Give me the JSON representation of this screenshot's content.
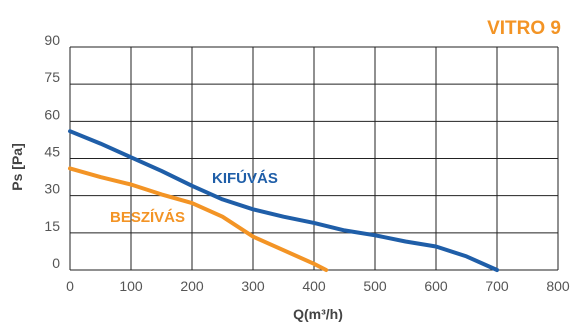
{
  "chart_data": {
    "type": "line",
    "title": "VITRO 9",
    "xlabel": "Q(m³/h)",
    "ylabel": "Ps [Pa]",
    "xlim": [
      0,
      800
    ],
    "ylim": [
      0,
      90
    ],
    "x_ticks": [
      "0",
      "100",
      "200",
      "300",
      "400",
      "500",
      "600",
      "700",
      "800"
    ],
    "y_ticks": [
      "90",
      "75",
      "60",
      "45",
      "30",
      "15",
      "0"
    ],
    "grid": true,
    "series": [
      {
        "name": "KIFÚVÁS",
        "color": "#1f5ea8",
        "points": [
          [
            0,
            56
          ],
          [
            50,
            51
          ],
          [
            100,
            45.5
          ],
          [
            150,
            40
          ],
          [
            200,
            34
          ],
          [
            250,
            28.5
          ],
          [
            300,
            24.5
          ],
          [
            350,
            21.5
          ],
          [
            400,
            19
          ],
          [
            450,
            16
          ],
          [
            500,
            14
          ],
          [
            550,
            11.5
          ],
          [
            600,
            9.5
          ],
          [
            650,
            5.5
          ],
          [
            700,
            0
          ]
        ]
      },
      {
        "name": "BESZÍVÁS",
        "color": "#f39425",
        "points": [
          [
            0,
            41
          ],
          [
            50,
            37.5
          ],
          [
            100,
            34.5
          ],
          [
            150,
            30.5
          ],
          [
            200,
            27
          ],
          [
            250,
            21.5
          ],
          [
            300,
            13.5
          ],
          [
            350,
            8
          ],
          [
            400,
            2.5
          ],
          [
            420,
            0
          ]
        ]
      }
    ],
    "title_color": "#f39425"
  }
}
